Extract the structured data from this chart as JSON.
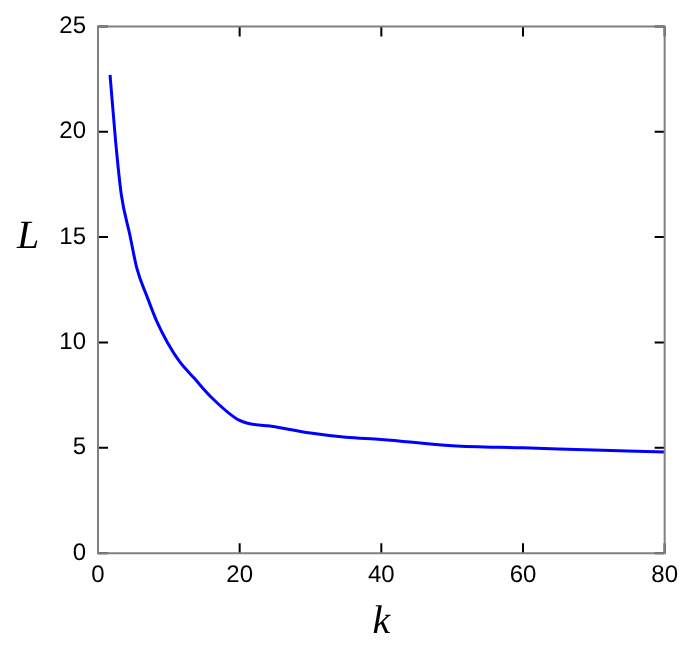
{
  "chart_data": {
    "type": "line",
    "xlabel": "k",
    "ylabel": "L",
    "series": [
      {
        "color": "#0000ff",
        "x": [
          1.7,
          2.5,
          3.3,
          4.5,
          5.5,
          6.9,
          8.3,
          9.8,
          11.5,
          13.6,
          16,
          20,
          25,
          30,
          35,
          40,
          50,
          60,
          70,
          80
        ],
        "values": [
          22.7,
          19.5,
          17.0,
          15.1,
          13.5,
          12.2,
          11.0,
          10.0,
          9.1,
          8.3,
          7.4,
          6.3,
          6.0,
          5.7,
          5.5,
          5.4,
          5.1,
          5.0,
          4.9,
          4.8
        ]
      }
    ],
    "xlim": [
      0,
      80
    ],
    "xticks": [
      0,
      20,
      40,
      60,
      80
    ],
    "ylim": [
      0,
      25
    ],
    "yticks": [
      0,
      5,
      10,
      15,
      20,
      25
    ],
    "grid": false,
    "legend": false,
    "marker": "none",
    "line_style": "solid"
  }
}
